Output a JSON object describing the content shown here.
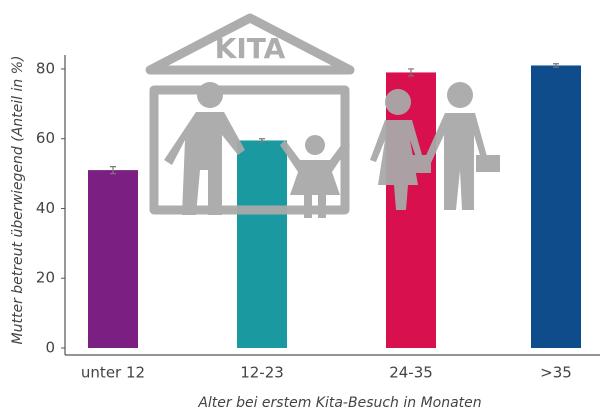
{
  "chart_data": {
    "type": "bar",
    "annotation": "KITA",
    "x_label": "Alter bei erstem Kita-Besuch in Monaten",
    "y_label": "Mutter betreut überwiegend (Anteil in %)",
    "categories": [
      "unter 12",
      "12-23",
      "24-35",
      ">35"
    ],
    "values": [
      51,
      59.5,
      79,
      81
    ],
    "errors": [
      1,
      0.5,
      1,
      0.5
    ],
    "colors": [
      "#7b1f82",
      "#1a9aa0",
      "#d8104e",
      "#0e4c8c"
    ],
    "ylim": [
      0,
      84
    ],
    "yticks": [
      0,
      20,
      40,
      60,
      80
    ],
    "grid": false
  }
}
